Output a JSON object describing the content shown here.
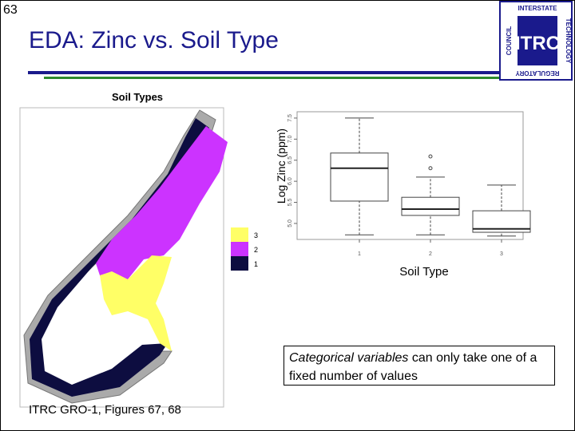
{
  "slide_number": "63",
  "title": "EDA: Zinc vs. Soil Type",
  "logo": {
    "mark": "ITRC",
    "top": "INTERSTATE",
    "right": "TECHNOLOGY",
    "left": "COUNCIL",
    "bottom": "REGULATORY"
  },
  "map": {
    "title": "Soil Types",
    "legend": [
      {
        "label": "3",
        "color": "#ffff66"
      },
      {
        "label": "2",
        "color": "#cc33ff"
      },
      {
        "label": "1",
        "color": "#0d0d40"
      }
    ]
  },
  "chart_data": {
    "type": "boxplot",
    "x_label": "Soil Type",
    "y_label": "Log Zinc (ppm)",
    "categories": [
      "1",
      "2",
      "3"
    ],
    "boxes": [
      {
        "min": 4.73,
        "q1": 5.53,
        "median": 6.31,
        "q3": 6.67,
        "max": 7.5,
        "outliers": []
      },
      {
        "min": 4.73,
        "q1": 5.19,
        "median": 5.34,
        "q3": 5.62,
        "max": 6.1,
        "outliers": [
          6.31,
          6.59
        ]
      },
      {
        "min": 4.7,
        "q1": 4.79,
        "median": 4.87,
        "q3": 5.3,
        "max": 5.91,
        "outliers": []
      }
    ],
    "ylim": [
      4.62,
      7.65
    ],
    "yticks": [
      {
        "value": 5,
        "label": "5.0"
      },
      5.5,
      {
        "value": 6,
        "label": "6.0"
      },
      6.5,
      {
        "value": 7,
        "label": "7.0"
      },
      7.5
    ]
  },
  "caption": {
    "emphasis": "Categorical variables",
    "rest": "can only take one of a fixed number of values"
  },
  "source": "ITRC GRO-1, Figures 67, 68"
}
